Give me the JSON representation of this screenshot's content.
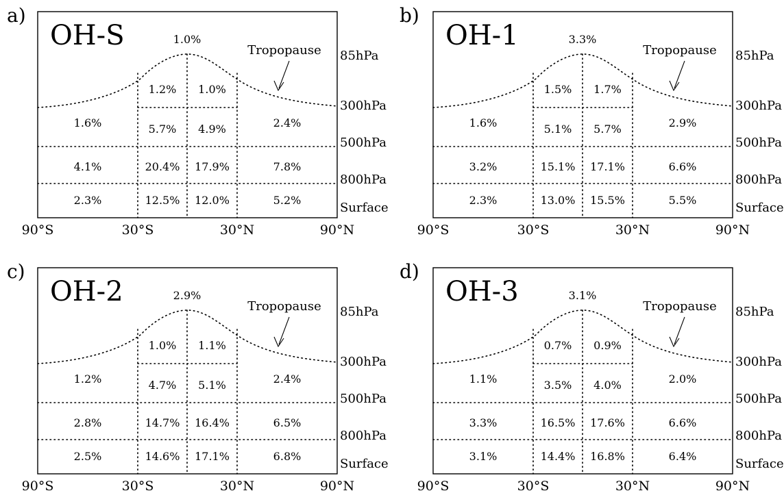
{
  "panels": [
    {
      "letter": "a)",
      "title": "OH-S",
      "peak": "1.0%",
      "tropopause": "Tropopause",
      "grid": [
        [
          "",
          "1.2%",
          "1.0%",
          ""
        ],
        [
          "1.6%",
          "5.7%",
          "4.9%",
          "2.4%"
        ],
        [
          "4.1%",
          "20.4%",
          "17.9%",
          "7.8%"
        ],
        [
          "2.3%",
          "12.5%",
          "12.0%",
          "5.2%"
        ]
      ]
    },
    {
      "letter": "b)",
      "title": "OH-1",
      "peak": "3.3%",
      "tropopause": "Tropopause",
      "grid": [
        [
          "",
          "1.5%",
          "1.7%",
          ""
        ],
        [
          "1.6%",
          "5.1%",
          "5.7%",
          "2.9%"
        ],
        [
          "3.2%",
          "15.1%",
          "17.1%",
          "6.6%"
        ],
        [
          "2.3%",
          "13.0%",
          "15.5%",
          "5.5%"
        ]
      ]
    },
    {
      "letter": "c)",
      "title": "OH-2",
      "peak": "2.9%",
      "tropopause": "Tropopause",
      "grid": [
        [
          "",
          "1.0%",
          "1.1%",
          ""
        ],
        [
          "1.2%",
          "4.7%",
          "5.1%",
          "2.4%"
        ],
        [
          "2.8%",
          "14.7%",
          "16.4%",
          "6.5%"
        ],
        [
          "2.5%",
          "14.6%",
          "17.1%",
          "6.8%"
        ]
      ]
    },
    {
      "letter": "d)",
      "title": "OH-3",
      "peak": "3.1%",
      "tropopause": "Tropopause",
      "grid": [
        [
          "",
          "0.7%",
          "0.9%",
          ""
        ],
        [
          "1.1%",
          "3.5%",
          "4.0%",
          "2.0%"
        ],
        [
          "3.3%",
          "16.5%",
          "17.6%",
          "6.6%"
        ],
        [
          "3.1%",
          "14.4%",
          "16.8%",
          "6.4%"
        ]
      ]
    }
  ],
  "pressure_labels": [
    "85hPa",
    "300hPa",
    "500hPa",
    "800hPa",
    "Surface"
  ],
  "lat_labels": [
    "90°S",
    "30°S",
    "30°N",
    "90°N"
  ]
}
